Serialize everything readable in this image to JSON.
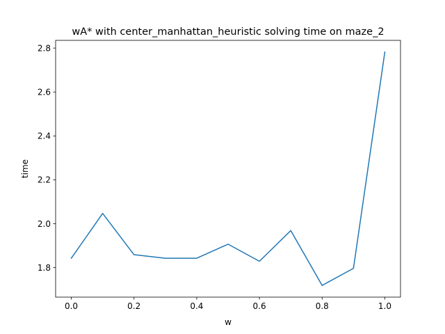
{
  "chart_data": {
    "type": "line",
    "title": "wA* with center_manhattan_heuristic solving time on maze_2",
    "xlabel": "w",
    "ylabel": "time",
    "x": [
      0.0,
      0.1,
      0.2,
      0.3,
      0.4,
      0.5,
      0.6,
      0.7,
      0.8,
      0.9,
      1.0
    ],
    "series": [
      {
        "values": [
          1.843,
          2.047,
          1.859,
          1.843,
          1.843,
          1.907,
          1.829,
          1.969,
          1.719,
          1.797,
          2.782
        ],
        "color": "#1f77b4"
      }
    ],
    "xlim": [
      -0.05,
      1.05
    ],
    "ylim": [
      1.6658,
      2.8352
    ],
    "xticks": [
      0.0,
      0.2,
      0.4,
      0.6,
      0.8,
      1.0
    ],
    "xtick_labels": [
      "0.0",
      "0.2",
      "0.4",
      "0.6",
      "0.8",
      "1.0"
    ],
    "yticks": [
      1.8,
      2.0,
      2.2,
      2.4,
      2.6,
      2.8
    ],
    "ytick_labels": [
      "1.8",
      "2.0",
      "2.2",
      "2.4",
      "2.6",
      "2.8"
    ],
    "grid": false,
    "legend": "none"
  }
}
